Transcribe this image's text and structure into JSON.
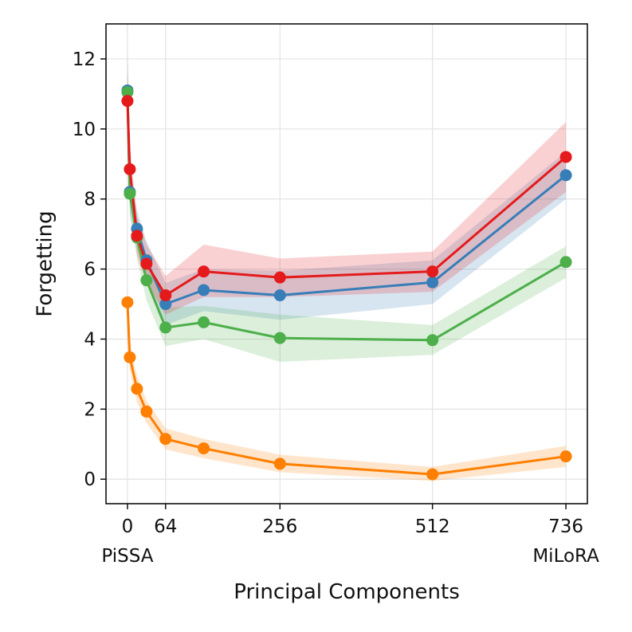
{
  "chart_data": {
    "type": "line",
    "title": "",
    "xlabel": "Principal Components",
    "ylabel": "Forgetting",
    "xlim": [
      -36,
      772
    ],
    "ylim": [
      -0.7,
      13.0
    ],
    "xticks": [
      {
        "value": 0,
        "label": "0",
        "sublabel": "PiSSA"
      },
      {
        "value": 64,
        "label": "64",
        "sublabel": ""
      },
      {
        "value": 256,
        "label": "256",
        "sublabel": ""
      },
      {
        "value": 512,
        "label": "512",
        "sublabel": ""
      },
      {
        "value": 736,
        "label": "736",
        "sublabel": "MiLoRA"
      }
    ],
    "yticks": [
      {
        "value": 0,
        "label": "0"
      },
      {
        "value": 2,
        "label": "2"
      },
      {
        "value": 4,
        "label": "4"
      },
      {
        "value": 6,
        "label": "6"
      },
      {
        "value": 8,
        "label": "8"
      },
      {
        "value": 10,
        "label": "10"
      },
      {
        "value": 12,
        "label": "12"
      }
    ],
    "grid": true,
    "legend": "none",
    "x": [
      0,
      4,
      16,
      32,
      64,
      128,
      256,
      512,
      736
    ],
    "series": [
      {
        "color": "#377eb8",
        "values": [
          11.1,
          8.2,
          7.15,
          6.25,
          5.0,
          5.4,
          5.25,
          5.62,
          8.68
        ],
        "lower": [
          10.0,
          7.6,
          6.6,
          5.7,
          4.4,
          4.8,
          4.55,
          5.0,
          8.0
        ],
        "upper": [
          12.2,
          8.8,
          7.7,
          6.8,
          5.6,
          6.0,
          5.95,
          6.25,
          9.35
        ]
      },
      {
        "color": "#4daf4a",
        "values": [
          11.05,
          8.15,
          6.9,
          5.68,
          4.33,
          4.48,
          4.03,
          3.97,
          6.2
        ],
        "lower": [
          9.9,
          7.5,
          6.3,
          5.1,
          3.8,
          4.0,
          3.35,
          3.55,
          5.75
        ],
        "upper": [
          12.2,
          8.8,
          7.5,
          6.25,
          4.9,
          4.95,
          4.7,
          4.4,
          6.65
        ]
      },
      {
        "color": "#e41a1c",
        "values": [
          10.8,
          8.85,
          6.95,
          6.15,
          5.25,
          5.93,
          5.76,
          5.93,
          9.2
        ],
        "lower": [
          9.7,
          8.2,
          6.4,
          5.6,
          4.7,
          5.2,
          5.2,
          5.35,
          8.2
        ],
        "upper": [
          11.9,
          9.5,
          7.5,
          6.7,
          5.8,
          6.7,
          6.3,
          6.5,
          10.2
        ]
      },
      {
        "color": "#ff7f00",
        "values": [
          5.05,
          3.48,
          2.58,
          1.93,
          1.15,
          0.88,
          0.44,
          0.14,
          0.65
        ],
        "lower": [
          4.6,
          3.1,
          2.2,
          1.6,
          0.85,
          0.6,
          0.2,
          -0.05,
          0.35
        ],
        "upper": [
          5.5,
          3.85,
          2.95,
          2.25,
          1.45,
          1.15,
          0.7,
          0.35,
          0.95
        ]
      }
    ]
  }
}
